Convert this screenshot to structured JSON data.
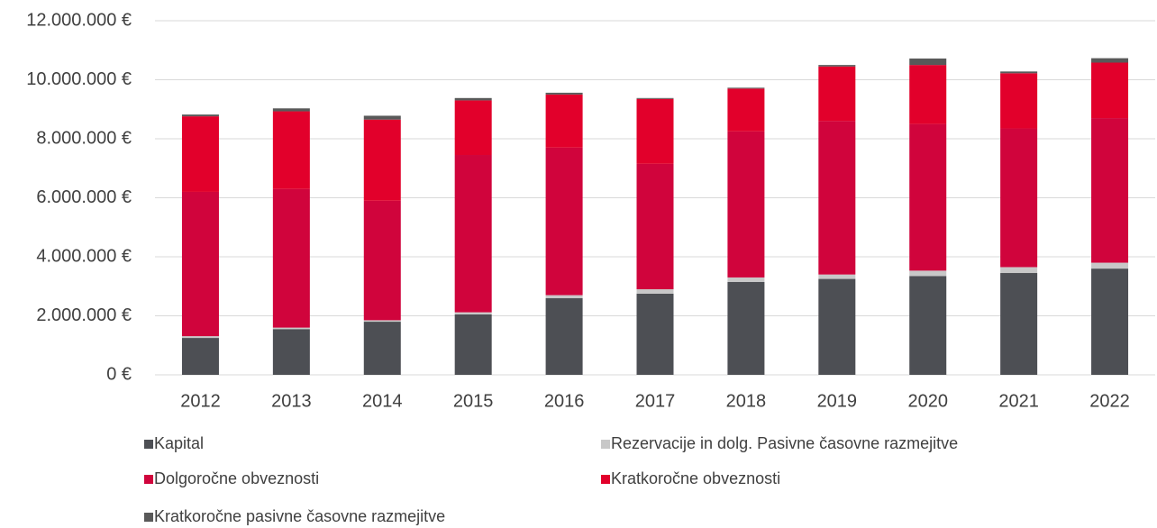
{
  "chart_data": {
    "type": "stacked_bar",
    "categories": [
      "2012",
      "2013",
      "2014",
      "2015",
      "2016",
      "2017",
      "2018",
      "2019",
      "2020",
      "2021",
      "2022"
    ],
    "series": [
      {
        "name": "Kapital",
        "color": "#4d4f54",
        "values": [
          1250000,
          1550000,
          1800000,
          2050000,
          2600000,
          2750000,
          3150000,
          3250000,
          3350000,
          3450000,
          3600000
        ]
      },
      {
        "name": "Rezervacije in dolg. Pasivne časovne razmejitve",
        "color": "#c8c8c8",
        "values": [
          60000,
          50000,
          50000,
          70000,
          100000,
          150000,
          150000,
          150000,
          180000,
          200000,
          200000
        ]
      },
      {
        "name": "Dolgoročne obveznosti",
        "color": "#d0043c",
        "values": [
          4890000,
          4700000,
          4050000,
          5330000,
          5000000,
          4250000,
          4950000,
          5200000,
          4970000,
          4700000,
          4900000
        ]
      },
      {
        "name": "Kratkoročne obveznosti",
        "color": "#e2002b",
        "values": [
          2560000,
          2630000,
          2750000,
          1850000,
          1800000,
          2200000,
          1450000,
          1850000,
          2000000,
          1870000,
          1880000
        ]
      },
      {
        "name": "Kratkoročne pasivne časovne razmejitve",
        "color": "#595959",
        "values": [
          60000,
          100000,
          130000,
          80000,
          60000,
          30000,
          30000,
          50000,
          220000,
          60000,
          150000
        ]
      }
    ],
    "ylim": [
      0,
      12000000
    ],
    "yticks": [
      {
        "value": 0,
        "label": "0 €"
      },
      {
        "value": 2000000,
        "label": "2.000.000 €"
      },
      {
        "value": 4000000,
        "label": "4.000.000 €"
      },
      {
        "value": 6000000,
        "label": "6.000.000 €"
      },
      {
        "value": 8000000,
        "label": "8.000.000 €"
      },
      {
        "value": 10000000,
        "label": "10.000.000 €"
      },
      {
        "value": 12000000,
        "label": "12.000.000 €"
      }
    ],
    "grid": true
  }
}
